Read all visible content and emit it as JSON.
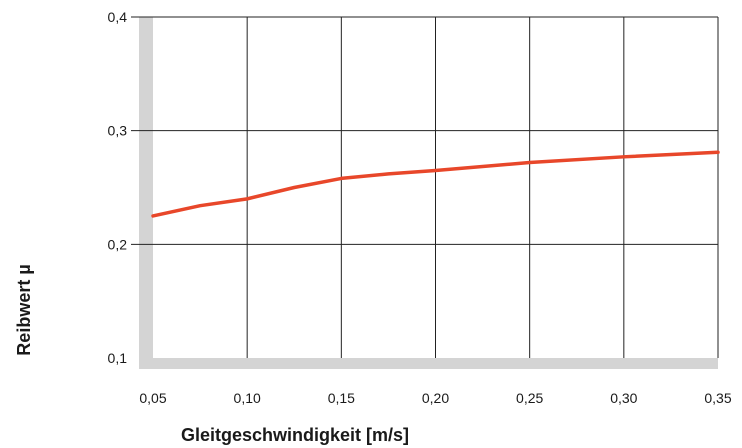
{
  "chart_data": {
    "type": "line",
    "title": "",
    "xlabel": "Gleitgeschwindigkeit [m/s]",
    "ylabel": "Reibwert µ",
    "xlim": [
      0.05,
      0.35
    ],
    "ylim": [
      0.1,
      0.4
    ],
    "x_ticks": [
      "0,05",
      "0,10",
      "0,15",
      "0,20",
      "0,25",
      "0,30",
      "0,35"
    ],
    "y_ticks": [
      "0,1",
      "0,2",
      "0,3",
      "0,4"
    ],
    "grid": true,
    "series": [
      {
        "x": [
          0.05,
          0.075,
          0.1,
          0.125,
          0.15,
          0.175,
          0.2,
          0.25,
          0.3,
          0.35
        ],
        "y": [
          0.225,
          0.234,
          0.24,
          0.25,
          0.258,
          0.262,
          0.265,
          0.272,
          0.277,
          0.281
        ]
      }
    ],
    "colors": {
      "line": "#e8472a",
      "grid": "#222222",
      "axis_band": "#d4d4d4"
    }
  }
}
